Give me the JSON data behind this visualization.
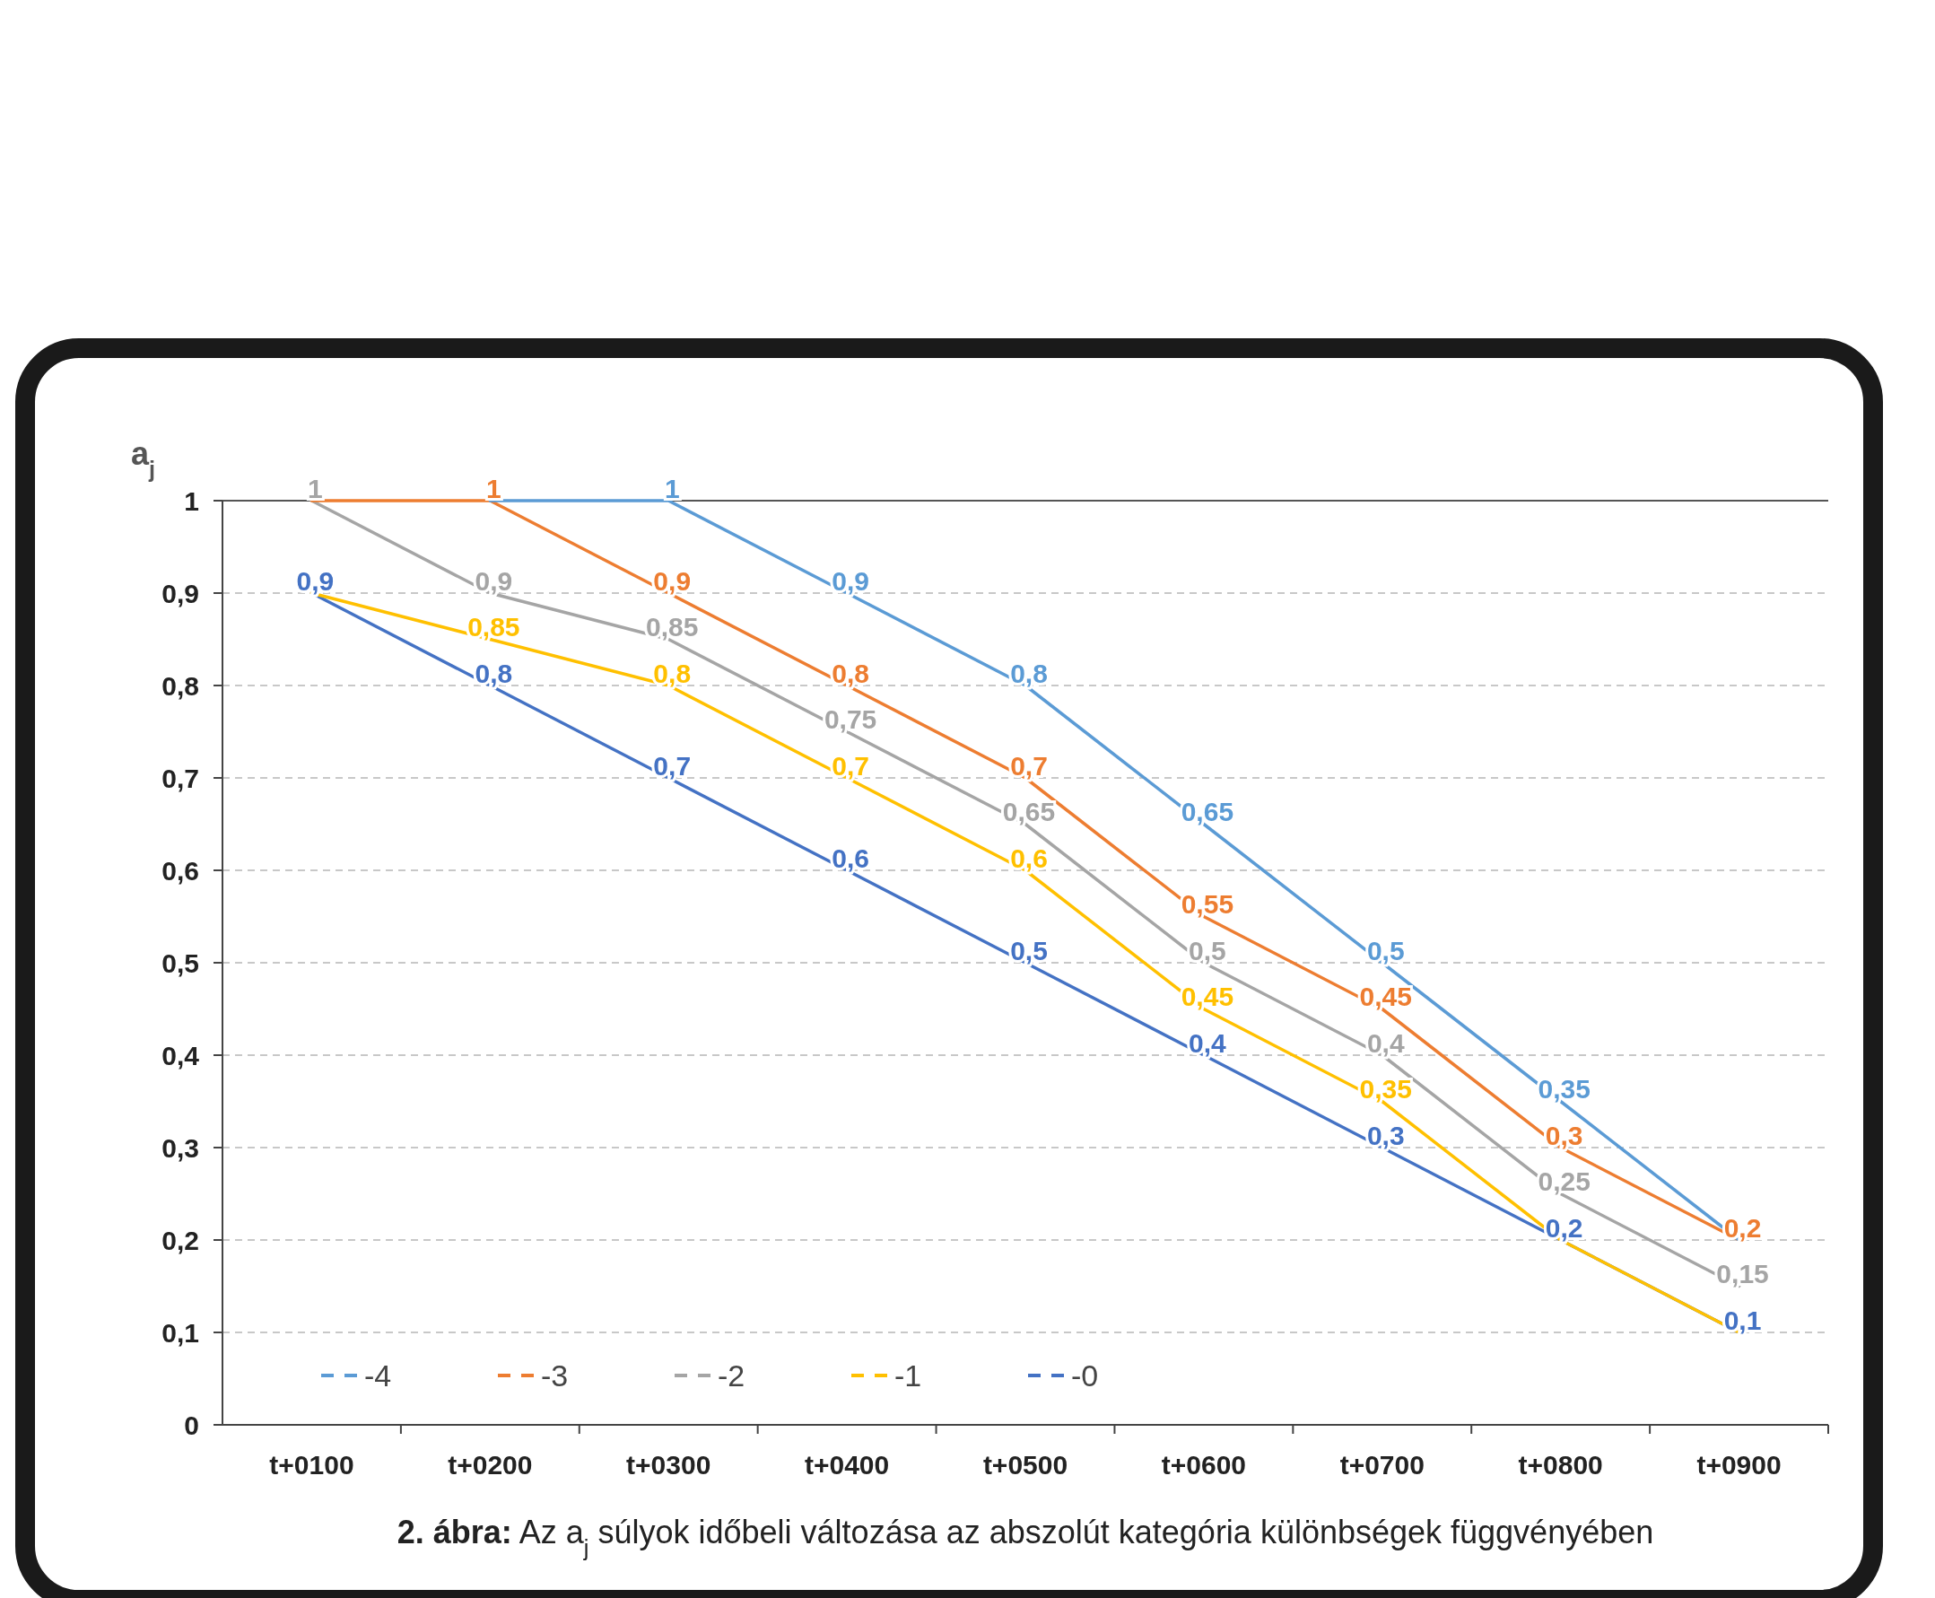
{
  "chart_data": {
    "type": "line",
    "title": "2. ábra: Az a$_{j}$ súlyok időbeli változása az abszolút kategória különbségek függvényében",
    "ylabel": "a$_{j}$",
    "categories": [
      "t+0100",
      "t+0200",
      "t+0300",
      "t+0400",
      "t+0500",
      "t+0600",
      "t+0700",
      "t+0800",
      "t+0900"
    ],
    "series": [
      {
        "name": "-4",
        "color": "#5b9bd5",
        "values": [
          null,
          1,
          1,
          0.9,
          0.8,
          0.65,
          0.5,
          0.35,
          0.2
        ],
        "value_labels": [
          null,
          null,
          "1",
          "0,9",
          "0,8",
          "0,65",
          "0,5",
          "0,35",
          null
        ]
      },
      {
        "name": "-3",
        "color": "#ed7d31",
        "values": [
          1,
          1,
          0.9,
          0.8,
          0.7,
          0.55,
          0.45,
          0.3,
          0.2
        ],
        "value_labels": [
          null,
          "1",
          "0,9",
          "0,8",
          "0,7",
          "0,55",
          "0,45",
          "0,3",
          "0,2"
        ]
      },
      {
        "name": "-2",
        "color": "#a5a5a5",
        "values": [
          1,
          0.9,
          0.85,
          0.75,
          0.65,
          0.5,
          0.4,
          0.25,
          0.15
        ],
        "value_labels": [
          "1",
          "0,9",
          "0,85",
          "0,75",
          "0,65",
          "0,5",
          "0,4",
          "0,25",
          "0,15"
        ]
      },
      {
        "name": "-1",
        "color": "#ffc000",
        "values": [
          0.9,
          0.85,
          0.8,
          0.7,
          0.6,
          0.45,
          0.35,
          0.2,
          0.1
        ],
        "value_labels": [
          null,
          "0,85",
          "0,8",
          "0,7",
          "0,6",
          "0,45",
          "0,35",
          null,
          null
        ]
      },
      {
        "name": "-0",
        "color": "#4472c4",
        "values": [
          0.9,
          0.8,
          0.7,
          0.6,
          0.5,
          0.4,
          0.3,
          0.2,
          0.1
        ],
        "value_labels": [
          "0,9",
          "0,8",
          "0,7",
          "0,6",
          "0,5",
          "0,4",
          "0,3",
          "0,2",
          "0,1"
        ]
      }
    ],
    "ylim": [
      0,
      1
    ],
    "yticks": [
      0,
      {
        "value": 0.1,
        "label": "0,1"
      },
      {
        "value": 0.2,
        "label": "0,2"
      },
      {
        "value": 0.3,
        "label": "0,3"
      },
      {
        "value": 0.4,
        "label": "0,4"
      },
      {
        "value": 0.5,
        "label": "0,5"
      },
      {
        "value": 0.6,
        "label": "0,6"
      },
      {
        "value": 0.7,
        "label": "0,7"
      },
      {
        "value": 0.8,
        "label": "0,8"
      },
      {
        "value": 0.9,
        "label": "0,9"
      },
      1
    ],
    "grid": "y",
    "legend": "bottom left",
    "line_style": "solid"
  }
}
